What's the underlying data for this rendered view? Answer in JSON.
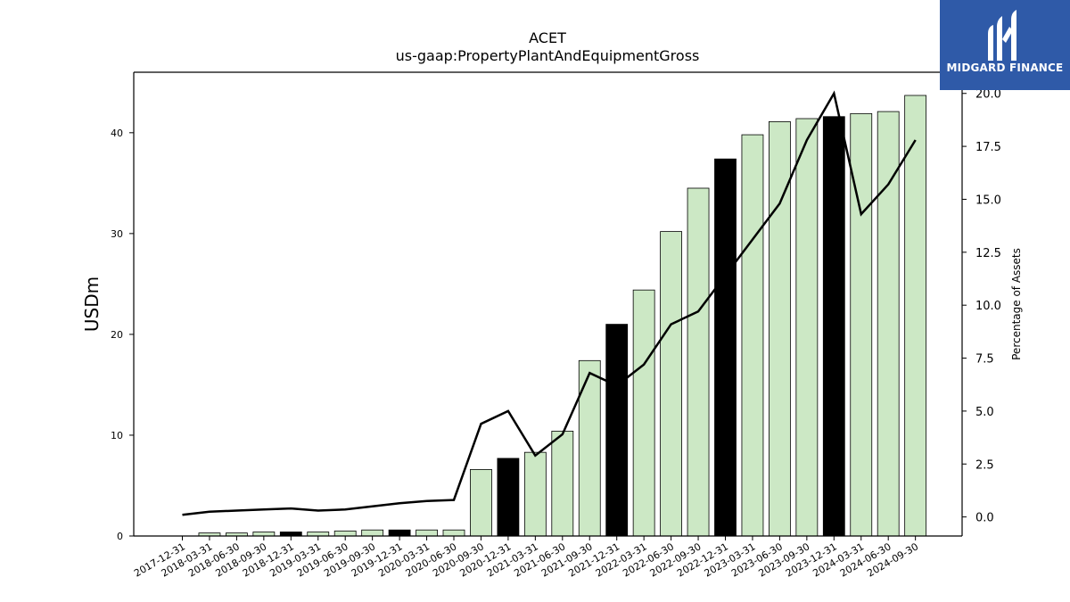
{
  "chart_data": {
    "type": "bar",
    "title": "ACET",
    "subtitle": "us-gaap:PropertyPlantAndEquipmentGross",
    "ylabel": "USDm",
    "y2label": "Percentage of Assets",
    "ylim": [
      0,
      46
    ],
    "y2lim": [
      -0.9,
      21.0
    ],
    "yticks": [
      0,
      10,
      20,
      30,
      40
    ],
    "y2ticks": [
      "0.0",
      "2.5",
      "5.0",
      "7.5",
      "10.0",
      "12.5",
      "15.0",
      "17.5",
      "20.0"
    ],
    "categories": [
      "2017-12-31",
      "2018-03-31",
      "2018-06-30",
      "2018-09-30",
      "2018-12-31",
      "2019-03-31",
      "2019-06-30",
      "2019-09-30",
      "2019-12-31",
      "2020-03-31",
      "2020-06-30",
      "2020-09-30",
      "2020-12-31",
      "2021-03-31",
      "2021-06-30",
      "2021-09-30",
      "2021-12-31",
      "2022-03-31",
      "2022-06-30",
      "2022-09-30",
      "2022-12-31",
      "2023-03-31",
      "2023-06-30",
      "2023-09-30",
      "2023-12-31",
      "2024-03-31",
      "2024-06-30",
      "2024-09-30"
    ],
    "series": [
      {
        "values": [
          0,
          0.3,
          0.3,
          0.4,
          0.4,
          0.4,
          0.5,
          0.6,
          0.6,
          0.6,
          0.6,
          6.6,
          7.7,
          8.3,
          10.4,
          17.4,
          21.0,
          24.4,
          30.2,
          34.5,
          37.4,
          39.8,
          41.1,
          41.4,
          41.6,
          41.9,
          42.1,
          43.7
        ],
        "highlight": [
          false,
          false,
          false,
          false,
          true,
          false,
          false,
          false,
          true,
          false,
          false,
          false,
          true,
          false,
          false,
          false,
          true,
          false,
          false,
          false,
          true,
          false,
          false,
          false,
          true,
          false,
          false,
          false
        ],
        "axis": "left"
      },
      {
        "values": [
          0.1,
          0.25,
          0.3,
          0.35,
          0.4,
          0.3,
          0.35,
          0.5,
          0.65,
          0.75,
          0.8,
          4.4,
          5.0,
          2.9,
          3.9,
          6.8,
          6.2,
          7.2,
          9.1,
          9.7,
          11.4,
          13.1,
          14.8,
          17.8,
          20.0,
          14.3,
          15.7,
          17.8
        ],
        "axis": "right",
        "type": "line"
      }
    ],
    "colors": {
      "bar": "#cce8c5",
      "bar_highlight": "#000000",
      "line": "#000000",
      "logo_bg": "#2f5aa8"
    }
  },
  "logo": {
    "text": "MIDGARD FINANCE"
  }
}
